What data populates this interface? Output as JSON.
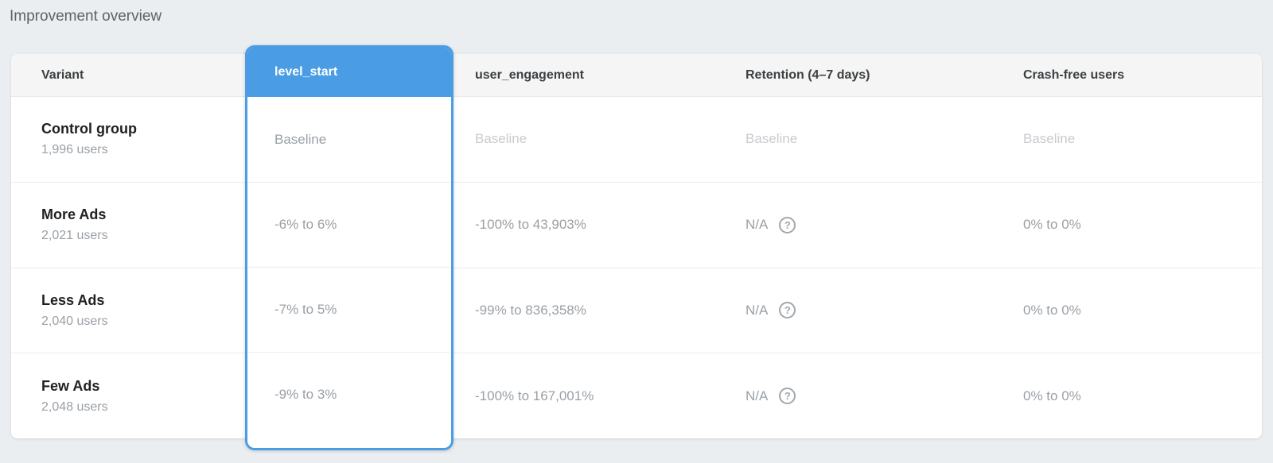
{
  "page": {
    "title": "Improvement overview"
  },
  "colors": {
    "accent_blue": "#4a9de4",
    "page_background": "#eaeef1",
    "header_band": "#f5f5f5",
    "primary_text": "#212121",
    "secondary_text": "#9aa0a6",
    "baseline_text": "#c8cbcf"
  },
  "icons": {
    "help": "help-circle-icon",
    "help_glyph": "?"
  },
  "table": {
    "columns": [
      {
        "id": "variant",
        "label": "Variant",
        "selected": false
      },
      {
        "id": "level_start",
        "label": "level_start",
        "selected": true
      },
      {
        "id": "user_engagement",
        "label": "user_engagement",
        "selected": false
      },
      {
        "id": "retention",
        "label": "Retention (4–7 days)",
        "selected": false
      },
      {
        "id": "crash_free",
        "label": "Crash-free users",
        "selected": false
      }
    ],
    "rows": [
      {
        "variant": "Control group",
        "users": "1,996 users",
        "level_start": "Baseline",
        "user_engagement": "Baseline",
        "retention": "Baseline",
        "retention_help": false,
        "crash_free": "Baseline"
      },
      {
        "variant": "More Ads",
        "users": "2,021 users",
        "level_start": "-6% to 6%",
        "user_engagement": "-100% to 43,903%",
        "retention": "N/A",
        "retention_help": true,
        "crash_free": "0% to 0%"
      },
      {
        "variant": "Less Ads",
        "users": "2,040 users",
        "level_start": "-7% to 5%",
        "user_engagement": "-99% to 836,358%",
        "retention": "N/A",
        "retention_help": true,
        "crash_free": "0% to 0%"
      },
      {
        "variant": "Few Ads",
        "users": "2,048 users",
        "level_start": "-9% to 3%",
        "user_engagement": "-100% to 167,001%",
        "retention": "N/A",
        "retention_help": true,
        "crash_free": "0% to 0%"
      }
    ]
  }
}
